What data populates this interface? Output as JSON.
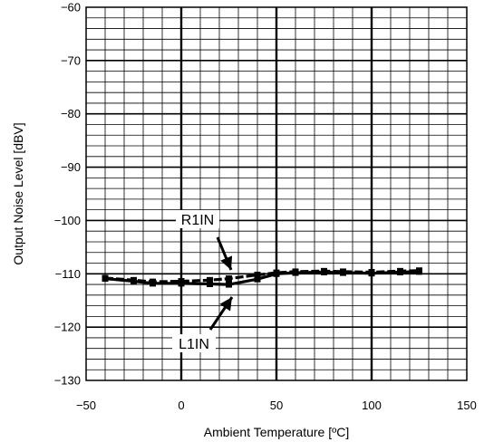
{
  "chart_data": {
    "type": "line",
    "xlabel": "Ambient Temperature [ºC]",
    "ylabel": "Output Noise Level [dBV]",
    "xlim": [
      -50,
      150
    ],
    "ylim": [
      -130,
      -60
    ],
    "xticks": [
      -50,
      0,
      50,
      100,
      150
    ],
    "yticks": [
      -60,
      -70,
      -80,
      -90,
      -100,
      -110,
      -120,
      -130
    ],
    "grid": true,
    "series": [
      {
        "name": "R1IN",
        "x": [
          -40,
          -25,
          -15,
          0,
          15,
          25,
          40,
          50,
          60,
          75,
          85,
          100,
          115,
          125
        ],
        "y": [
          -110.8,
          -111.2,
          -111.5,
          -111.4,
          -111.2,
          -110.9,
          -110.2,
          -109.8,
          -109.6,
          -109.5,
          -109.6,
          -109.7,
          -109.5,
          -109.4
        ]
      },
      {
        "name": "L1IN",
        "x": [
          -40,
          -25,
          -15,
          0,
          15,
          25,
          40,
          50,
          60,
          75,
          85,
          100,
          115,
          125
        ],
        "y": [
          -110.9,
          -111.4,
          -111.8,
          -111.8,
          -111.9,
          -112.0,
          -111.0,
          -110.0,
          -109.8,
          -109.7,
          -109.8,
          -109.9,
          -109.7,
          -109.6
        ]
      }
    ],
    "annotations": [
      {
        "text": "R1IN",
        "target_series": "R1IN"
      },
      {
        "text": "L1IN",
        "target_series": "L1IN"
      }
    ]
  }
}
